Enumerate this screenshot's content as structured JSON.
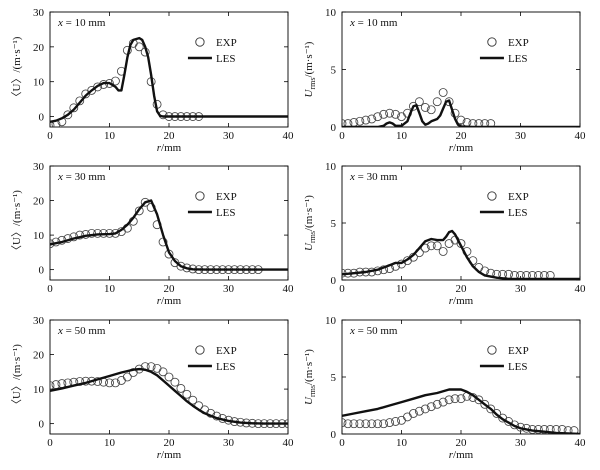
{
  "chart_data": [
    {
      "type": "line",
      "panel": "top-left",
      "annotation": "x = 10 mm",
      "xlabel": "r/mm",
      "ylabel": "〈U〉/(m·s⁻¹)",
      "xlim": [
        0,
        40
      ],
      "ylim": [
        -3,
        30
      ],
      "xticks": [
        0,
        10,
        20,
        30,
        40
      ],
      "yticks": [
        0,
        10,
        20,
        30
      ],
      "legend": [
        "EXP",
        "LES"
      ],
      "legend_position": "top-right",
      "series": [
        {
          "name": "EXP",
          "kind": "markers",
          "x": [
            0,
            1,
            2,
            3,
            4,
            5,
            6,
            7,
            8,
            9,
            10,
            11,
            12,
            13,
            14,
            15,
            16,
            17,
            18,
            19,
            20,
            21,
            22,
            23,
            24,
            25
          ],
          "y": [
            -2.5,
            -2.2,
            -1.5,
            0.5,
            2.5,
            4.5,
            6.5,
            7.5,
            8.5,
            9.2,
            9.5,
            10.2,
            13,
            19,
            21,
            20,
            18.5,
            10,
            3.5,
            0.5,
            0,
            0,
            0,
            0,
            0,
            0
          ]
        },
        {
          "name": "LES",
          "kind": "line",
          "x": [
            0,
            1,
            2,
            3,
            4,
            5,
            6,
            7,
            8,
            9,
            10,
            11,
            11.5,
            12,
            12.5,
            13,
            13.5,
            14,
            15,
            15.5,
            16,
            16.5,
            17,
            17.5,
            18,
            18.5,
            19,
            20,
            22,
            25,
            30,
            35,
            40
          ],
          "y": [
            -1.5,
            -1.2,
            -0.5,
            0.5,
            2,
            4,
            6,
            7.5,
            8.8,
            9.6,
            9.6,
            8.5,
            7.5,
            7.5,
            12,
            17,
            20.5,
            22,
            22.5,
            22,
            20,
            17,
            12,
            6,
            1.5,
            0.2,
            0,
            0,
            0,
            0,
            0,
            0,
            0
          ]
        }
      ]
    },
    {
      "type": "line",
      "panel": "top-right",
      "annotation": "x = 10 mm",
      "xlabel": "r/mm",
      "ylabel": "U_rms/(m·s⁻¹)",
      "xlim": [
        0,
        40
      ],
      "ylim": [
        0,
        10
      ],
      "xticks": [
        0,
        10,
        20,
        30,
        40
      ],
      "yticks": [
        0,
        5,
        10
      ],
      "legend": [
        "EXP",
        "LES"
      ],
      "legend_position": "top-right",
      "series": [
        {
          "name": "EXP",
          "kind": "markers",
          "x": [
            0,
            1,
            2,
            3,
            4,
            5,
            6,
            7,
            8,
            9,
            10,
            11,
            12,
            13,
            14,
            15,
            16,
            17,
            18,
            19,
            20,
            21,
            22,
            23,
            24,
            25
          ],
          "y": [
            0.3,
            0.3,
            0.4,
            0.5,
            0.6,
            0.7,
            0.9,
            1.1,
            1.2,
            1.1,
            0.9,
            1.2,
            1.8,
            2.2,
            1.7,
            1.5,
            2.2,
            3.0,
            2.2,
            1.2,
            0.6,
            0.4,
            0.3,
            0.3,
            0.3,
            0.3
          ]
        },
        {
          "name": "LES",
          "kind": "line",
          "x": [
            0,
            2,
            4,
            6,
            7,
            7.5,
            8,
            8.5,
            9,
            10,
            11,
            11.5,
            12,
            12.5,
            13,
            13.5,
            14,
            14.5,
            15,
            16,
            16.5,
            17,
            17.5,
            18,
            18.5,
            19,
            19.5,
            20,
            22,
            25,
            30,
            35,
            40
          ],
          "y": [
            0,
            0,
            0,
            0,
            0.1,
            0.3,
            0.4,
            0.3,
            0.1,
            0.1,
            0.5,
            1.2,
            1.8,
            1.9,
            1.2,
            0.5,
            0.2,
            0.3,
            0.5,
            0.7,
            1.0,
            1.6,
            2.2,
            2.3,
            1.5,
            0.7,
            0.2,
            0.05,
            0,
            0,
            0,
            0,
            0
          ]
        }
      ]
    },
    {
      "type": "line",
      "panel": "middle-left",
      "annotation": "x = 30 mm",
      "xlabel": "r/mm",
      "ylabel": "〈U〉/(m·s⁻¹)",
      "xlim": [
        0,
        40
      ],
      "ylim": [
        -3,
        30
      ],
      "xticks": [
        0,
        10,
        20,
        30,
        40
      ],
      "yticks": [
        0,
        10,
        20,
        30
      ],
      "legend": [
        "EXP",
        "LES"
      ],
      "legend_position": "top-right",
      "series": [
        {
          "name": "EXP",
          "kind": "markers",
          "x": [
            0,
            1,
            2,
            3,
            4,
            5,
            6,
            7,
            8,
            9,
            10,
            11,
            12,
            13,
            14,
            15,
            16,
            17,
            18,
            19,
            20,
            21,
            22,
            23,
            24,
            25,
            26,
            27,
            28,
            29,
            30,
            31,
            32,
            33,
            34,
            35
          ],
          "y": [
            7.5,
            8,
            8.5,
            9,
            9.5,
            10,
            10.2,
            10.5,
            10.5,
            10.5,
            10.5,
            10.5,
            11,
            12,
            14,
            17,
            19.5,
            18,
            13,
            8,
            4.5,
            2,
            1,
            0.5,
            0.2,
            0,
            0,
            0,
            0,
            0,
            0,
            0,
            0,
            0,
            0,
            0
          ]
        },
        {
          "name": "LES",
          "kind": "line",
          "x": [
            0,
            2,
            4,
            6,
            8,
            10,
            11,
            12,
            13,
            14,
            15,
            16,
            17,
            18,
            19,
            20,
            21,
            22,
            23,
            24,
            26,
            30,
            35,
            40
          ],
          "y": [
            7.3,
            8,
            9,
            9.8,
            10.2,
            10.3,
            10.5,
            11.5,
            13,
            15,
            17.5,
            19.5,
            20,
            16,
            10,
            5,
            2.5,
            1,
            0.4,
            0.1,
            0,
            0,
            0,
            0
          ]
        }
      ]
    },
    {
      "type": "line",
      "panel": "middle-right",
      "annotation": "x = 30 mm",
      "xlabel": "r/mm",
      "ylabel": "U_rms/(m·s⁻¹)",
      "xlim": [
        0,
        40
      ],
      "ylim": [
        0,
        10
      ],
      "xticks": [
        0,
        10,
        20,
        30,
        40
      ],
      "yticks": [
        0,
        5,
        10
      ],
      "legend": [
        "EXP",
        "LES"
      ],
      "legend_position": "top-right",
      "series": [
        {
          "name": "EXP",
          "kind": "markers",
          "x": [
            0,
            1,
            2,
            3,
            4,
            5,
            6,
            7,
            8,
            9,
            10,
            11,
            12,
            13,
            14,
            15,
            16,
            17,
            18,
            19,
            20,
            21,
            22,
            23,
            24,
            25,
            26,
            27,
            28,
            29,
            30,
            31,
            32,
            33,
            34,
            35
          ],
          "y": [
            0.6,
            0.6,
            0.6,
            0.7,
            0.7,
            0.7,
            0.8,
            0.9,
            1.0,
            1.2,
            1.4,
            1.7,
            2.0,
            2.4,
            2.8,
            3.0,
            3.0,
            2.5,
            3.2,
            3.5,
            3.2,
            2.5,
            1.7,
            1.1,
            0.8,
            0.6,
            0.5,
            0.5,
            0.5,
            0.4,
            0.4,
            0.4,
            0.4,
            0.4,
            0.4,
            0.4
          ]
        },
        {
          "name": "LES",
          "kind": "line",
          "x": [
            0,
            2,
            4,
            6,
            7,
            8,
            9,
            10,
            11,
            12,
            13,
            14,
            15,
            16,
            17,
            17.5,
            18,
            18.5,
            19,
            20,
            21,
            22,
            23,
            24,
            26,
            28,
            30,
            35,
            40
          ],
          "y": [
            0.5,
            0.6,
            0.7,
            0.9,
            1.1,
            1.3,
            1.5,
            1.5,
            1.8,
            2.2,
            2.8,
            3.4,
            3.6,
            3.5,
            3.5,
            3.8,
            4.2,
            4.3,
            4.0,
            3.0,
            2.0,
            1.2,
            0.7,
            0.4,
            0.2,
            0.1,
            0.1,
            0.1,
            0.1
          ]
        }
      ]
    },
    {
      "type": "line",
      "panel": "bottom-left",
      "annotation": "x = 50 mm",
      "xlabel": "r/mm",
      "ylabel": "〈U〉/(m·s⁻¹)",
      "xlim": [
        0,
        40
      ],
      "ylim": [
        -3,
        30
      ],
      "xticks": [
        0,
        10,
        20,
        30,
        40
      ],
      "yticks": [
        0,
        10,
        20,
        30
      ],
      "legend": [
        "EXP",
        "LES"
      ],
      "legend_position": "top-right",
      "series": [
        {
          "name": "EXP",
          "kind": "markers",
          "x": [
            0,
            1,
            2,
            3,
            4,
            5,
            6,
            7,
            8,
            9,
            10,
            11,
            12,
            13,
            14,
            15,
            16,
            17,
            18,
            19,
            20,
            21,
            22,
            23,
            24,
            25,
            26,
            27,
            28,
            29,
            30,
            31,
            32,
            33,
            34,
            35,
            36,
            37,
            38,
            39,
            40
          ],
          "y": [
            11,
            11.3,
            11.6,
            11.8,
            12,
            12.2,
            12.3,
            12.3,
            12.2,
            12,
            11.8,
            11.8,
            12.5,
            13.5,
            14.8,
            15.8,
            16.5,
            16.5,
            16,
            15,
            13.5,
            12,
            10.2,
            8.5,
            6.8,
            5.2,
            4,
            3,
            2.2,
            1.5,
            1,
            0.6,
            0.4,
            0.2,
            0.1,
            0,
            0,
            0,
            0,
            0,
            0
          ]
        },
        {
          "name": "LES",
          "kind": "line",
          "x": [
            0,
            2,
            4,
            6,
            8,
            10,
            12,
            14,
            15,
            16,
            17,
            18,
            19,
            20,
            21,
            22,
            23,
            24,
            25,
            26,
            27,
            28,
            30,
            32,
            34,
            36,
            38,
            40
          ],
          "y": [
            9.5,
            10.2,
            11,
            11.8,
            12.8,
            13.8,
            14.8,
            15.6,
            15.8,
            15.6,
            15,
            14,
            12.5,
            11,
            9.5,
            8,
            6.5,
            5.2,
            4,
            3,
            2.3,
            1.6,
            0.8,
            0.3,
            0.1,
            0,
            0,
            0
          ]
        }
      ]
    },
    {
      "type": "line",
      "panel": "bottom-right",
      "annotation": "x = 50 mm",
      "xlabel": "r/mm",
      "ylabel": "U_rms/(m·s⁻¹)",
      "xlim": [
        0,
        40
      ],
      "ylim": [
        0,
        10
      ],
      "xticks": [
        0,
        10,
        20,
        30,
        40
      ],
      "yticks": [
        0,
        5,
        10
      ],
      "legend": [
        "EXP",
        "LES"
      ],
      "legend_position": "top-right",
      "series": [
        {
          "name": "EXP",
          "kind": "markers",
          "x": [
            0,
            1,
            2,
            3,
            4,
            5,
            6,
            7,
            8,
            9,
            10,
            11,
            12,
            13,
            14,
            15,
            16,
            17,
            18,
            19,
            20,
            21,
            22,
            23,
            24,
            25,
            26,
            27,
            28,
            29,
            30,
            31,
            32,
            33,
            34,
            35,
            36,
            37,
            38,
            39
          ],
          "y": [
            1.0,
            0.9,
            0.9,
            0.9,
            0.9,
            0.9,
            0.9,
            0.9,
            1.0,
            1.1,
            1.2,
            1.5,
            1.8,
            2.0,
            2.2,
            2.4,
            2.6,
            2.8,
            3.0,
            3.1,
            3.1,
            3.3,
            3.2,
            3.0,
            2.6,
            2.2,
            1.8,
            1.4,
            1.1,
            0.8,
            0.6,
            0.5,
            0.4,
            0.4,
            0.4,
            0.4,
            0.4,
            0.4,
            0.3,
            0.3
          ]
        },
        {
          "name": "LES",
          "kind": "line",
          "x": [
            0,
            2,
            4,
            6,
            8,
            10,
            12,
            14,
            16,
            18,
            19,
            20,
            21,
            22,
            23,
            24,
            25,
            26,
            27,
            28,
            29,
            30,
            32,
            34,
            36,
            38,
            40
          ],
          "y": [
            1.6,
            1.8,
            2.0,
            2.2,
            2.5,
            2.8,
            3.1,
            3.4,
            3.6,
            3.9,
            3.9,
            3.9,
            3.7,
            3.4,
            3.0,
            2.6,
            2.2,
            1.7,
            1.3,
            1.0,
            0.7,
            0.5,
            0.3,
            0.2,
            0.1,
            0.05,
            0
          ]
        }
      ]
    }
  ]
}
